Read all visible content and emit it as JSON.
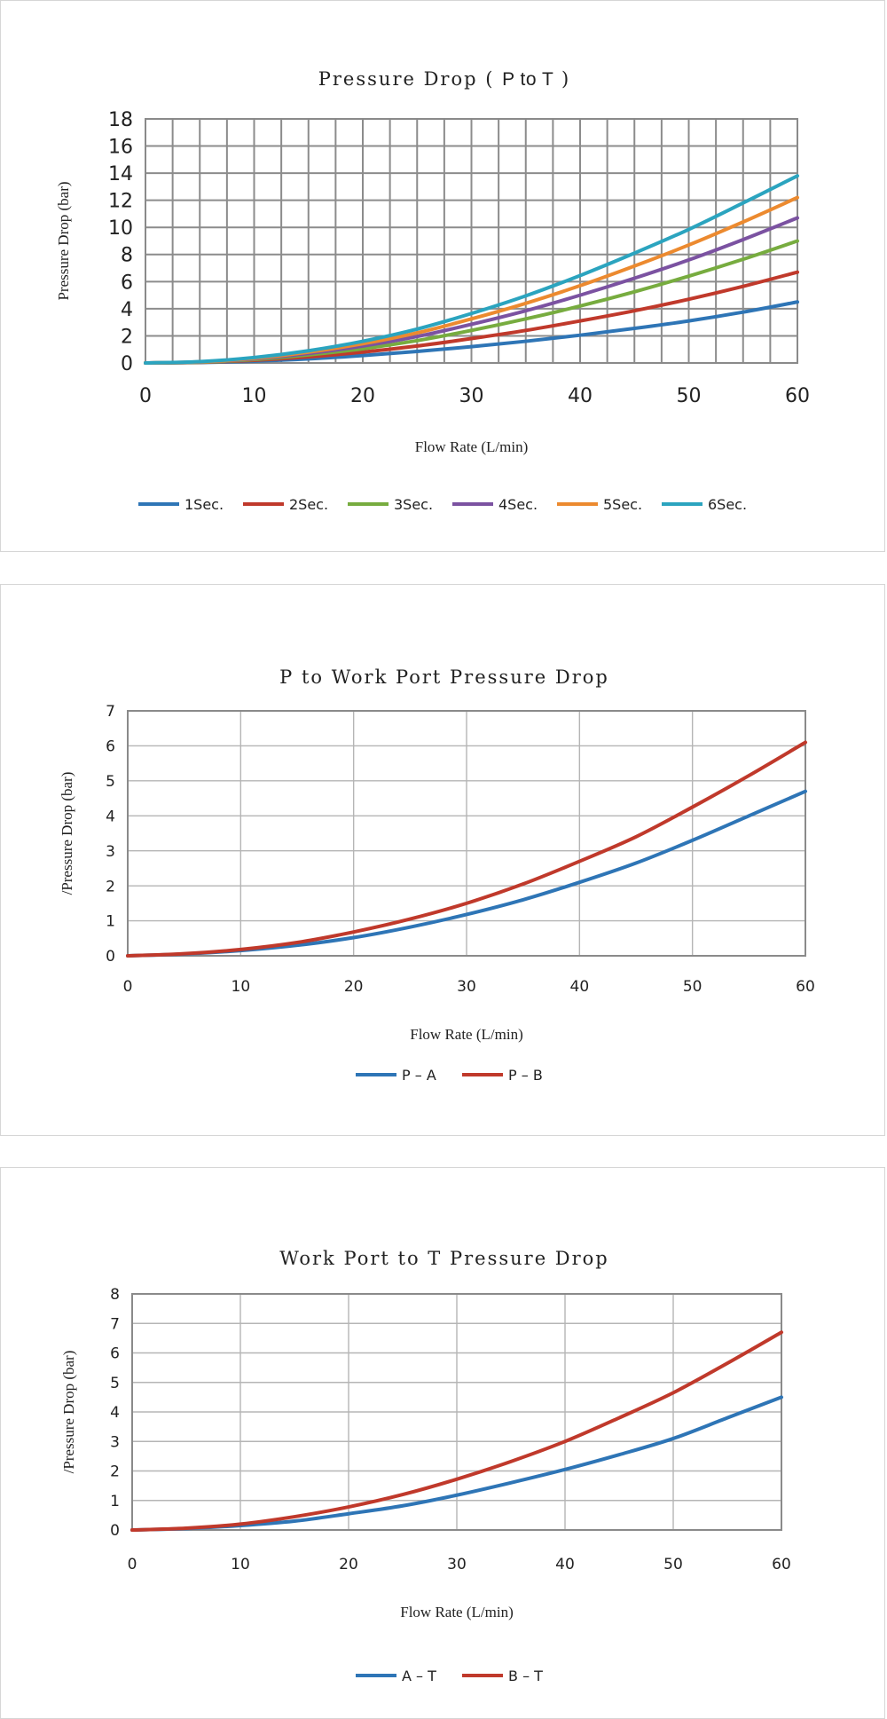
{
  "chart_data": [
    {
      "type": "line",
      "title": "Pressure Drop ( P to T )",
      "xlabel": "Flow Rate (L/min)",
      "ylabel": "Pressure Drop (bar)",
      "xlim": [
        0,
        60
      ],
      "ylim": [
        0,
        18
      ],
      "xticks": [
        0,
        10,
        20,
        30,
        40,
        50,
        60
      ],
      "yticks": [
        0,
        2,
        4,
        6,
        8,
        10,
        12,
        14,
        16,
        18
      ],
      "grid": "dense",
      "legend": "bottom",
      "series": [
        {
          "name": "1Sec.",
          "color": "#2e75b6",
          "x": [
            0,
            5,
            10,
            15,
            20,
            25,
            30,
            35,
            40,
            45,
            50,
            55,
            60
          ],
          "y": [
            0,
            0.03,
            0.13,
            0.3,
            0.55,
            0.85,
            1.2,
            1.6,
            2.05,
            2.55,
            3.1,
            3.75,
            4.5
          ]
        },
        {
          "name": "2Sec.",
          "color": "#c0392b",
          "x": [
            0,
            5,
            10,
            15,
            20,
            25,
            30,
            35,
            40,
            45,
            50,
            55,
            60
          ],
          "y": [
            0,
            0.05,
            0.2,
            0.45,
            0.8,
            1.25,
            1.8,
            2.4,
            3.1,
            3.85,
            4.7,
            5.65,
            6.7
          ]
        },
        {
          "name": "3Sec.",
          "color": "#77ac3f",
          "x": [
            0,
            5,
            10,
            15,
            20,
            25,
            30,
            35,
            40,
            45,
            50,
            55,
            60
          ],
          "y": [
            0,
            0.06,
            0.25,
            0.6,
            1.05,
            1.65,
            2.4,
            3.25,
            4.2,
            5.25,
            6.4,
            7.65,
            9.0
          ]
        },
        {
          "name": "4Sec.",
          "color": "#7b52a1",
          "x": [
            0,
            5,
            10,
            15,
            20,
            25,
            30,
            35,
            40,
            45,
            50,
            55,
            60
          ],
          "y": [
            0,
            0.07,
            0.3,
            0.7,
            1.25,
            1.95,
            2.85,
            3.85,
            5.0,
            6.25,
            7.6,
            9.1,
            10.7
          ]
        },
        {
          "name": "5Sec.",
          "color": "#ec8a2f",
          "x": [
            0,
            5,
            10,
            15,
            20,
            25,
            30,
            35,
            40,
            45,
            50,
            55,
            60
          ],
          "y": [
            0,
            0.08,
            0.34,
            0.8,
            1.42,
            2.22,
            3.25,
            4.4,
            5.7,
            7.15,
            8.7,
            10.4,
            12.2
          ]
        },
        {
          "name": "6Sec.",
          "color": "#2ba4bf",
          "x": [
            0,
            5,
            10,
            15,
            20,
            25,
            30,
            35,
            40,
            45,
            50,
            55,
            60
          ],
          "y": [
            0,
            0.1,
            0.4,
            0.9,
            1.6,
            2.5,
            3.65,
            4.95,
            6.45,
            8.1,
            9.85,
            11.8,
            13.8
          ]
        }
      ]
    },
    {
      "type": "line",
      "title": "P to Work Port Pressure Drop",
      "xlabel": "Flow Rate (L/min)",
      "ylabel": "/Pressure Drop (bar)",
      "xlim": [
        0,
        60
      ],
      "ylim": [
        0,
        7
      ],
      "xticks": [
        0,
        10,
        20,
        30,
        40,
        50,
        60
      ],
      "yticks": [
        0,
        1,
        2,
        3,
        4,
        5,
        6,
        7
      ],
      "grid": "major",
      "legend": "bottom",
      "series": [
        {
          "name": "P – A",
          "color": "#2e75b6",
          "x": [
            0,
            5,
            10,
            15,
            20,
            25,
            30,
            35,
            40,
            45,
            50,
            55,
            60
          ],
          "y": [
            0,
            0.05,
            0.15,
            0.3,
            0.52,
            0.82,
            1.18,
            1.6,
            2.1,
            2.65,
            3.3,
            4.0,
            4.7
          ]
        },
        {
          "name": "P – B",
          "color": "#c0392b",
          "x": [
            0,
            5,
            10,
            15,
            20,
            25,
            30,
            35,
            40,
            45,
            50,
            55,
            60
          ],
          "y": [
            0,
            0.06,
            0.18,
            0.38,
            0.68,
            1.05,
            1.5,
            2.05,
            2.7,
            3.4,
            4.25,
            5.15,
            6.1
          ]
        }
      ]
    },
    {
      "type": "line",
      "title": "Work Port to T Pressure Drop",
      "xlabel": "Flow Rate (L/min)",
      "ylabel": "/Pressure Drop (bar)",
      "xlim": [
        0,
        60
      ],
      "ylim": [
        0,
        8
      ],
      "xticks": [
        0,
        10,
        20,
        30,
        40,
        50,
        60
      ],
      "yticks": [
        0,
        1,
        2,
        3,
        4,
        5,
        6,
        7,
        8
      ],
      "grid": "major",
      "legend": "bottom",
      "series": [
        {
          "name": "A – T",
          "color": "#2e75b6",
          "x": [
            0,
            5,
            10,
            15,
            20,
            25,
            30,
            35,
            40,
            45,
            50,
            55,
            60
          ],
          "y": [
            0,
            0.05,
            0.15,
            0.3,
            0.55,
            0.82,
            1.18,
            1.6,
            2.05,
            2.55,
            3.1,
            3.8,
            4.5
          ]
        },
        {
          "name": "B – T",
          "color": "#c0392b",
          "x": [
            0,
            5,
            10,
            15,
            20,
            25,
            30,
            35,
            40,
            45,
            50,
            55,
            60
          ],
          "y": [
            0,
            0.06,
            0.2,
            0.45,
            0.78,
            1.2,
            1.72,
            2.32,
            3.0,
            3.8,
            4.65,
            5.65,
            6.7
          ]
        }
      ]
    }
  ]
}
